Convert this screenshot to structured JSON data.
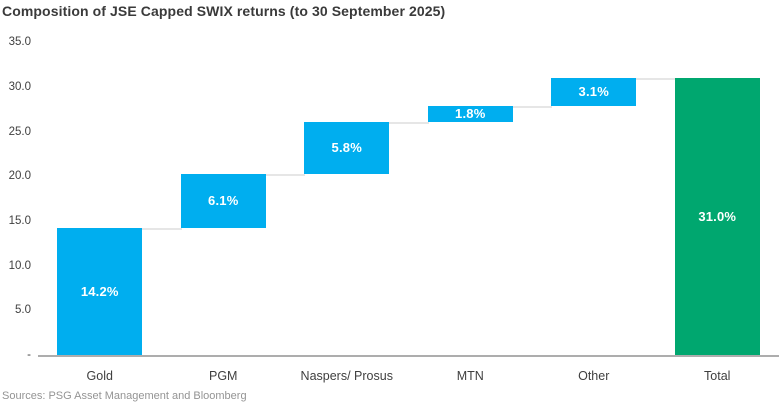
{
  "chart_data": {
    "type": "bar",
    "subtype": "waterfall",
    "title": "Composition of JSE Capped SWIX returns (to 30 September 2025)",
    "xlabel": "",
    "ylabel": "",
    "ylim": [
      0,
      35
    ],
    "grid": false,
    "legend": "none",
    "yticks": [
      {
        "value": 35,
        "label": "35.0"
      },
      {
        "value": 30,
        "label": "30.0"
      },
      {
        "value": 25,
        "label": "25.0"
      },
      {
        "value": 20,
        "label": "20.0"
      },
      {
        "value": 15,
        "label": "15.0"
      },
      {
        "value": 10,
        "label": "10.0"
      },
      {
        "value": 5,
        "label": "5.0"
      },
      {
        "value": 0,
        "label": "-"
      }
    ],
    "categories": [
      "Gold",
      "PGM",
      "Naspers/ Prosus",
      "MTN",
      "Other",
      "Total"
    ],
    "segments": [
      {
        "category": "Gold",
        "value": 14.2,
        "label": "14.2%",
        "start": 0,
        "end": 14.2,
        "role": "increment"
      },
      {
        "category": "PGM",
        "value": 6.1,
        "label": "6.1%",
        "start": 14.2,
        "end": 20.3,
        "role": "increment"
      },
      {
        "category": "Naspers/ Prosus",
        "value": 5.8,
        "label": "5.8%",
        "start": 20.3,
        "end": 26.1,
        "role": "increment"
      },
      {
        "category": "MTN",
        "value": 1.8,
        "label": "1.8%",
        "start": 26.1,
        "end": 27.9,
        "role": "increment"
      },
      {
        "category": "Other",
        "value": 3.1,
        "label": "3.1%",
        "start": 27.9,
        "end": 31.0,
        "role": "increment"
      },
      {
        "category": "Total",
        "value": 31.0,
        "label": "31.0%",
        "start": 0,
        "end": 31.0,
        "role": "total"
      }
    ]
  },
  "colors": {
    "increment_bar": "#00AEEF",
    "total_bar": "#00A76F",
    "bar_label_text": "#FFFFFF",
    "connector_line": "#E6E6E6",
    "baseline_axis": "#ADADAD",
    "title_text": "#3A3A3A",
    "axis_text": "#3F3F3F",
    "source_text": "#949494"
  },
  "footer": {
    "source_note": "Sources: PSG Asset Management and Bloomberg"
  }
}
